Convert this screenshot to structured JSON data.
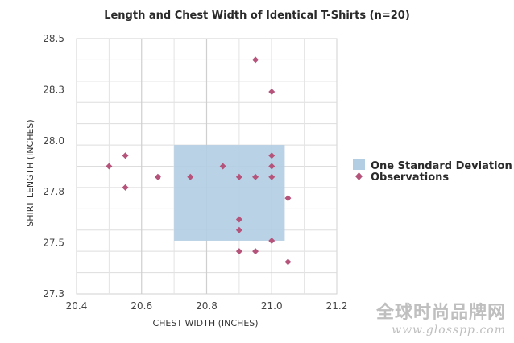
{
  "chart_data": {
    "type": "scatter",
    "title": "Length and Chest Width of Identical T-Shirts (n=20)",
    "xlabel": "CHEST WIDTH (INCHES)",
    "ylabel": "SHIRT LENGTH (INCHES)",
    "xlim": [
      20.4,
      21.2
    ],
    "ylim": [
      27.3,
      28.5
    ],
    "x_ticks": [
      "20.4",
      "20.6",
      "20.8",
      "21.0",
      "21.2"
    ],
    "y_ticks": [
      "27.3",
      "27.5",
      "27.8",
      "28.0",
      "28.3",
      "28.5"
    ],
    "grid": true,
    "legend_position": "right",
    "std_region": {
      "name": "One Standard Deviation",
      "x": [
        20.7,
        21.04
      ],
      "y": [
        27.55,
        28.0
      ],
      "color": "#b3cde3"
    },
    "series": [
      {
        "name": "Observations",
        "color": "#b5537a",
        "points": [
          {
            "x": 20.5,
            "y": 27.9
          },
          {
            "x": 20.55,
            "y": 27.95
          },
          {
            "x": 20.55,
            "y": 27.8
          },
          {
            "x": 20.65,
            "y": 27.85
          },
          {
            "x": 20.75,
            "y": 27.85
          },
          {
            "x": 20.85,
            "y": 27.9
          },
          {
            "x": 20.9,
            "y": 27.85
          },
          {
            "x": 20.95,
            "y": 27.85
          },
          {
            "x": 20.95,
            "y": 28.4
          },
          {
            "x": 21.0,
            "y": 28.25
          },
          {
            "x": 21.0,
            "y": 27.95
          },
          {
            "x": 21.0,
            "y": 27.9
          },
          {
            "x": 21.0,
            "y": 27.85
          },
          {
            "x": 21.05,
            "y": 27.75
          },
          {
            "x": 20.9,
            "y": 27.65
          },
          {
            "x": 20.9,
            "y": 27.6
          },
          {
            "x": 21.0,
            "y": 27.55
          },
          {
            "x": 20.9,
            "y": 27.5
          },
          {
            "x": 20.95,
            "y": 27.5
          },
          {
            "x": 21.05,
            "y": 27.45
          }
        ]
      }
    ]
  },
  "watermark": {
    "line1": "全球时尚品牌网",
    "line2": "www.glosspp.com"
  }
}
